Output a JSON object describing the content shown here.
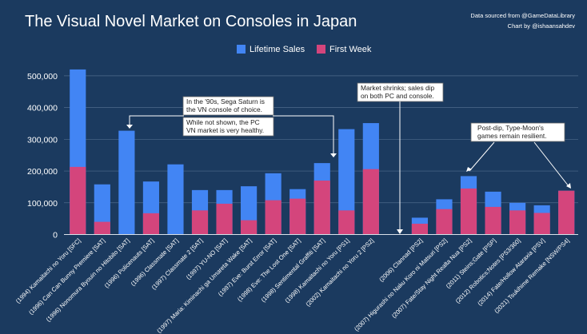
{
  "chart_data": {
    "type": "bar",
    "stacked": "overlay",
    "title": "The Visual Novel Market on Consoles in Japan",
    "credits": [
      "Data sourced from @GameDataLibrary",
      "Chart by @ishaansahdev"
    ],
    "legend_position": "top",
    "categories": [
      "(1994)  Kamaitachi no Yoru [SFC]",
      "(1996)  Can Can Bunny Premiere [SAT]",
      "(1996)  Nonomura Byouin no Hitobito [SAT]",
      "(1996)  Policenauts [SAT]",
      "(1996)  Classmate [SAT]",
      "(1997)  Classmate 2 [SAT]",
      "(1997)  YU-NO [SAT]",
      "(1997)  Maria: Kiminachi ga Umareta Wake [SAT]",
      "(1997)  Eve: Burst Error [SAT]",
      "(1998)  Eve: The Lost One [SAT]",
      "(1998)  Sentimental Graffiti [SAT]",
      "(1998)  Kamaitachi no Yoru [PS1]",
      "(2002)  Kamaitachi no Yoru 2 [PS2]",
      "",
      "(2006)  Clannad [PS2]",
      "(2007)  Higurashi no Naku Koro ni Matsuri [PS2]",
      "(2007)  Fate/Stay Night Realta Nua [PS2]",
      "(2011)  Steins;Gate [PSP]",
      "(2012)  Robotics;Notes [PS3/360]",
      "(2014)  Fate/Hollow Ataraxia [PSV]",
      "(2021)  Tsukihime Remake [NSW/PS4]"
    ],
    "series": [
      {
        "name": "Lifetime Sales",
        "color": "#4285f4",
        "values": [
          520000,
          158000,
          327000,
          167000,
          221000,
          140000,
          140000,
          152000,
          193000,
          143000,
          225000,
          332000,
          351000,
          null,
          53000,
          111000,
          184000,
          135000,
          100000,
          92000,
          138000
        ]
      },
      {
        "name": "First Week",
        "color": "#d4457c",
        "values": [
          213000,
          40000,
          null,
          67000,
          null,
          76000,
          97000,
          45000,
          108000,
          113000,
          170000,
          76000,
          206000,
          null,
          34000,
          80000,
          145000,
          87000,
          76000,
          68000,
          138000
        ]
      }
    ],
    "ylim": [
      0,
      550000
    ],
    "yticks": [
      "0",
      "100,000",
      "200,000",
      "300,000",
      "400,000",
      "500,000"
    ],
    "ytick_values": [
      0,
      100000,
      200000,
      300000,
      400000,
      500000
    ],
    "grid": true,
    "annotations": [
      "In the '90s, Sega Saturn is the VN console of choice.",
      "While not shown, the PC VN market is very healthy.",
      "Market shrinks; sales dip on both PC and console.",
      "Post-dip, Type-Moon's games remain resilient."
    ]
  }
}
